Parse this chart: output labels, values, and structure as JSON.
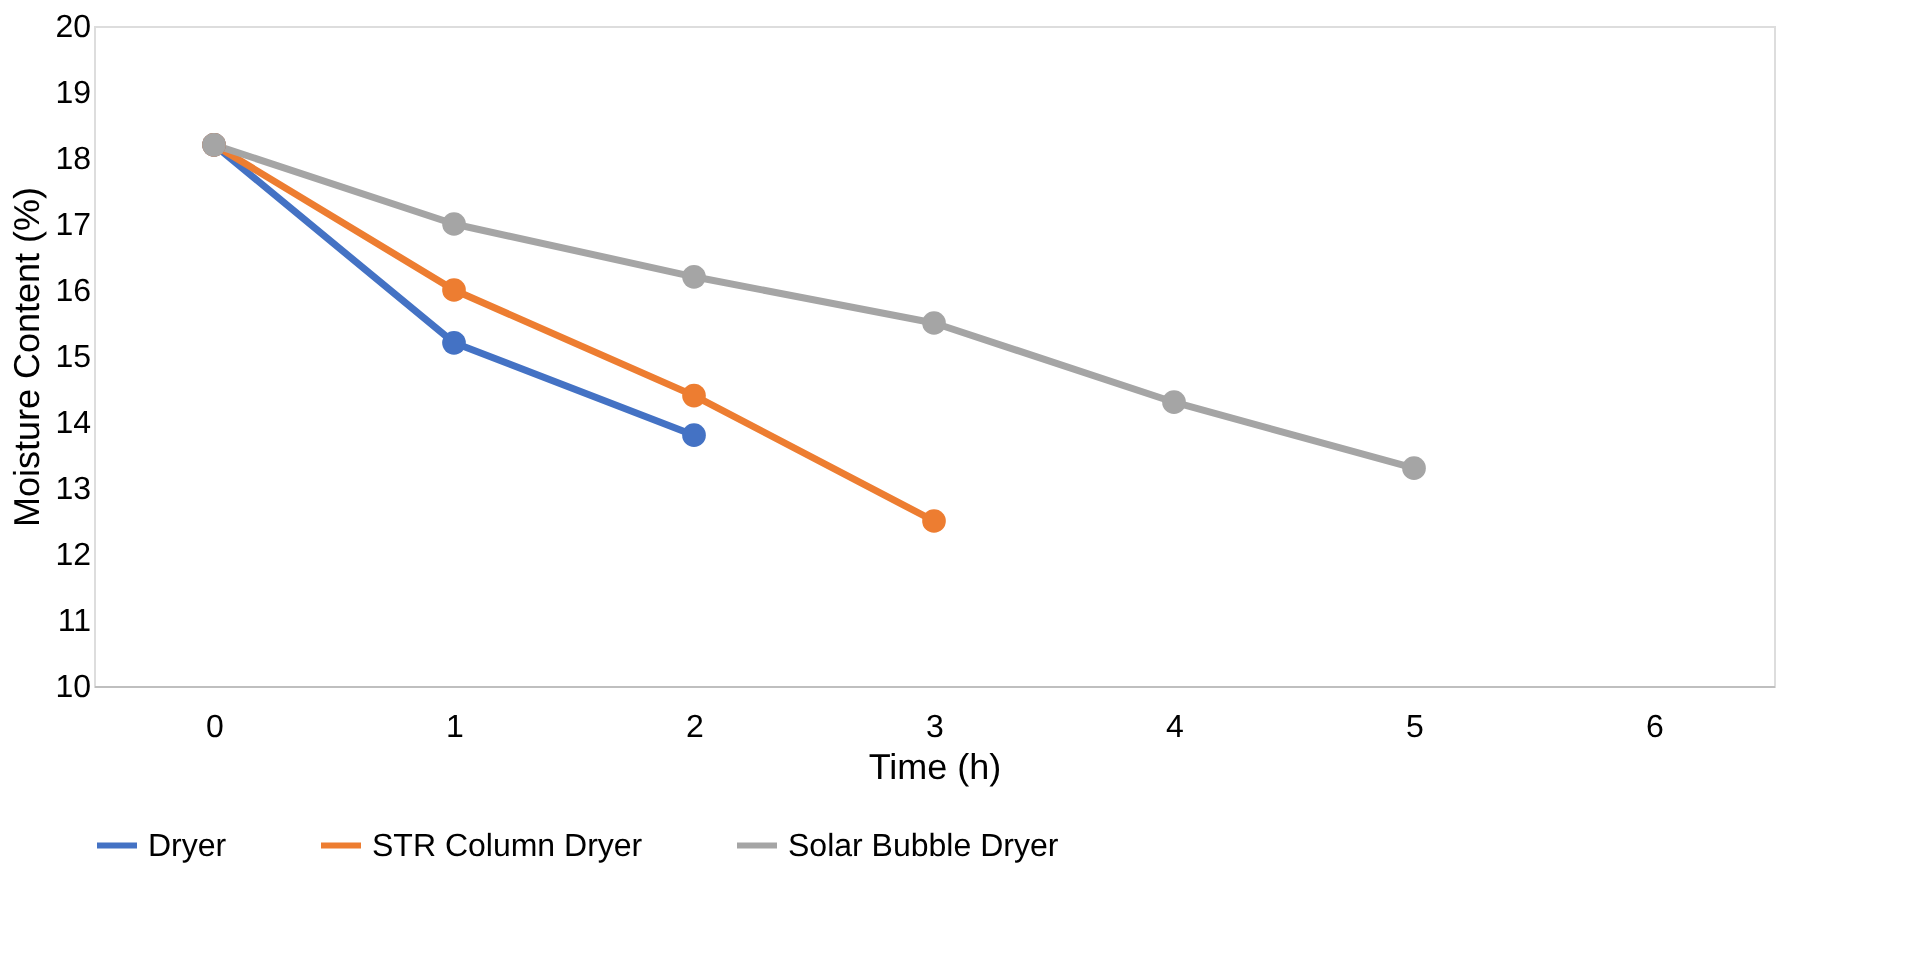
{
  "chart_data": {
    "type": "line",
    "xlabel": "Time (h)",
    "ylabel": "Moisture Content (%)",
    "categories": [
      "0",
      "1",
      "2",
      "3",
      "4",
      "5",
      "6"
    ],
    "series": [
      {
        "name": "Dryer",
        "color": "#4472c4",
        "values": [
          18.2,
          15.2,
          13.8,
          null,
          null,
          null,
          null
        ]
      },
      {
        "name": "STR Column Dryer",
        "color": "#ed7d31",
        "values": [
          18.2,
          16.0,
          14.4,
          12.5,
          null,
          null,
          null
        ]
      },
      {
        "name": "Solar Bubble Dryer",
        "color": "#a5a5a5",
        "values": [
          18.2,
          17.0,
          16.2,
          15.5,
          14.3,
          13.3,
          null
        ]
      }
    ],
    "ylim": [
      10,
      20
    ],
    "yticks": [
      10,
      11,
      12,
      13,
      14,
      15,
      16,
      17,
      18,
      19,
      20
    ],
    "grid": false,
    "legend": "bottom",
    "marker": "circle",
    "line_style": "solid"
  }
}
